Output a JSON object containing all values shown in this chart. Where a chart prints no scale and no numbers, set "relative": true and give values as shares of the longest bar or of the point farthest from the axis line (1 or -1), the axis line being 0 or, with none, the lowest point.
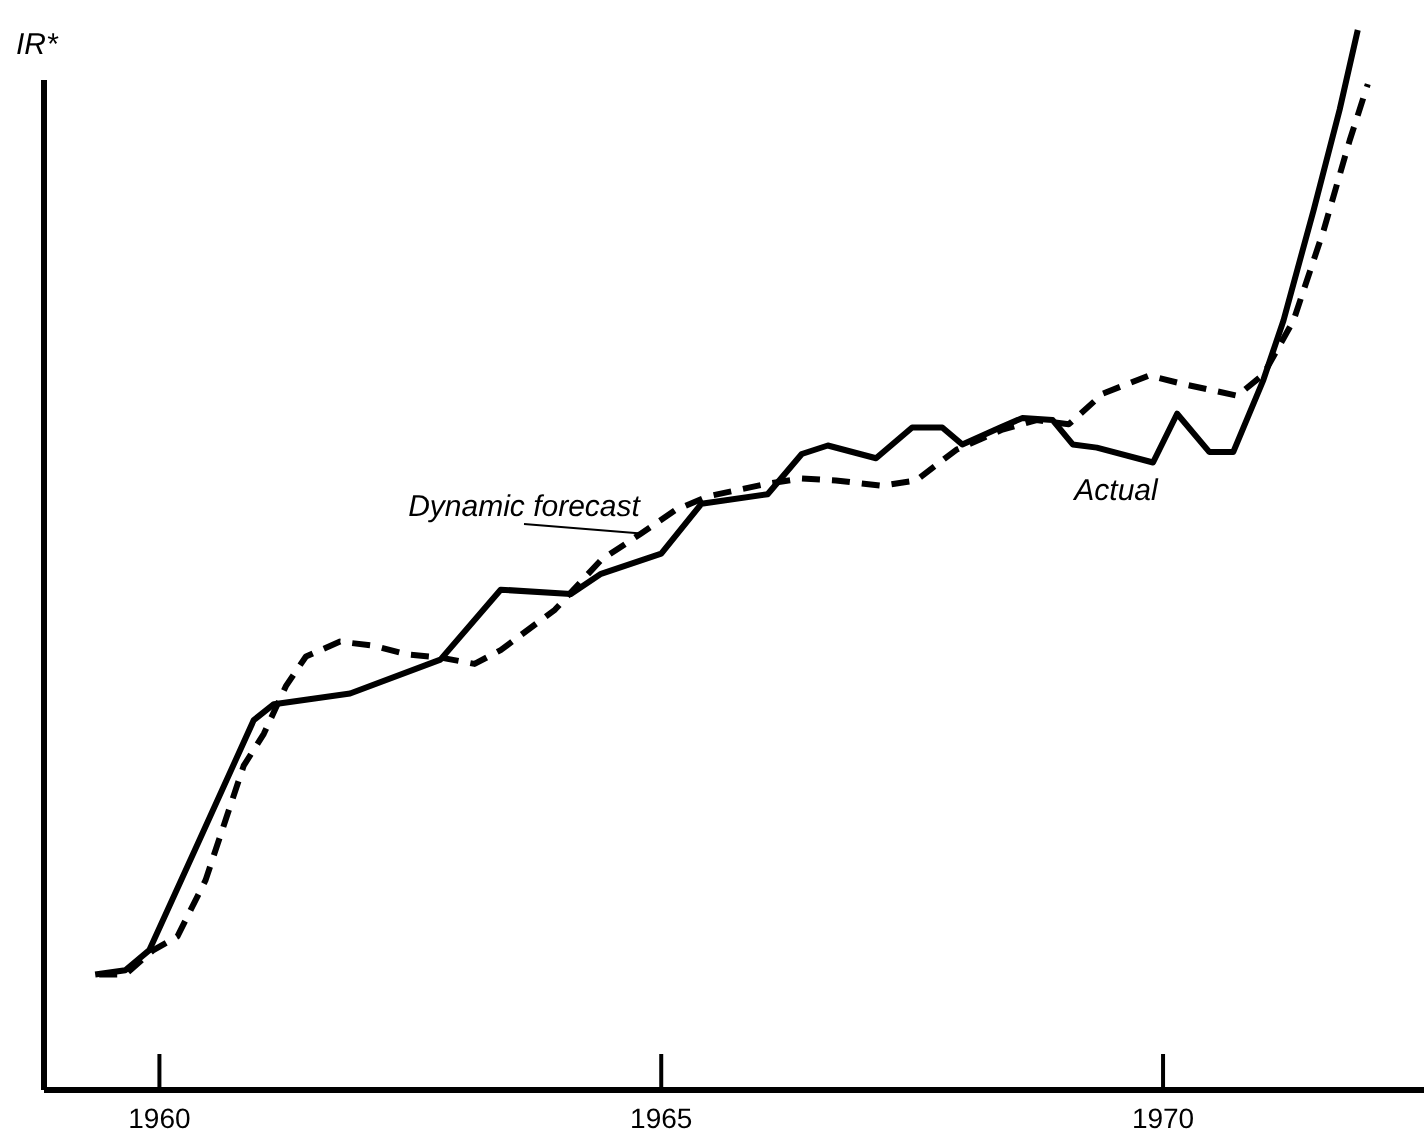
{
  "chart_data": {
    "type": "line",
    "relative": true,
    "ylabel": "IR*",
    "xlim": [
      1958.85,
      1972.6
    ],
    "xticks": [
      1960,
      1965,
      1970
    ],
    "tick_labels": "x",
    "grid": false,
    "legend": false,
    "marker": "none",
    "series": [
      {
        "name": "Actual",
        "color": "#000000",
        "line_style": "solid",
        "x": [
          1959.36,
          1959.66,
          1959.9,
          1960.4,
          1960.94,
          1961.14,
          1961.9,
          1962.8,
          1963.4,
          1964.1,
          1964.4,
          1965.0,
          1965.4,
          1966.06,
          1966.4,
          1966.66,
          1967.14,
          1967.5,
          1967.8,
          1968.0,
          1968.4,
          1968.6,
          1968.9,
          1969.1,
          1969.34,
          1969.9,
          1970.14,
          1970.46,
          1970.7,
          1971.0,
          1971.2,
          1971.5,
          1971.76,
          1971.94
        ],
        "values": [
          0.109,
          0.113,
          0.132,
          0.236,
          0.349,
          0.364,
          0.374,
          0.406,
          0.472,
          0.468,
          0.487,
          0.506,
          0.553,
          0.562,
          0.6,
          0.608,
          0.596,
          0.625,
          0.625,
          0.609,
          0.626,
          0.634,
          0.632,
          0.609,
          0.606,
          0.592,
          0.638,
          0.602,
          0.602,
          0.67,
          0.726,
          0.83,
          0.925,
          1.0
        ]
      },
      {
        "name": "Dynamic forecast",
        "color": "#000000",
        "line_style": "dashed",
        "x": [
          1959.4,
          1959.66,
          1959.94,
          1960.18,
          1960.46,
          1960.66,
          1960.84,
          1961.04,
          1961.26,
          1961.46,
          1961.8,
          1962.14,
          1962.46,
          1962.8,
          1963.14,
          1963.4,
          1963.94,
          1964.4,
          1964.8,
          1965.14,
          1965.46,
          1966.06,
          1966.4,
          1966.74,
          1967.2,
          1967.54,
          1967.94,
          1968.4,
          1968.74,
          1969.06,
          1969.4,
          1969.86,
          1970.2,
          1970.74,
          1971.0,
          1971.3,
          1971.6,
          1971.86,
          1972.04
        ],
        "values": [
          0.109,
          0.109,
          0.132,
          0.145,
          0.198,
          0.255,
          0.306,
          0.336,
          0.381,
          0.409,
          0.423,
          0.419,
          0.411,
          0.408,
          0.402,
          0.415,
          0.453,
          0.5,
          0.525,
          0.547,
          0.56,
          0.572,
          0.577,
          0.575,
          0.57,
          0.575,
          0.604,
          0.623,
          0.632,
          0.628,
          0.657,
          0.674,
          0.666,
          0.655,
          0.675,
          0.726,
          0.811,
          0.896,
          0.949
        ]
      }
    ]
  }
}
